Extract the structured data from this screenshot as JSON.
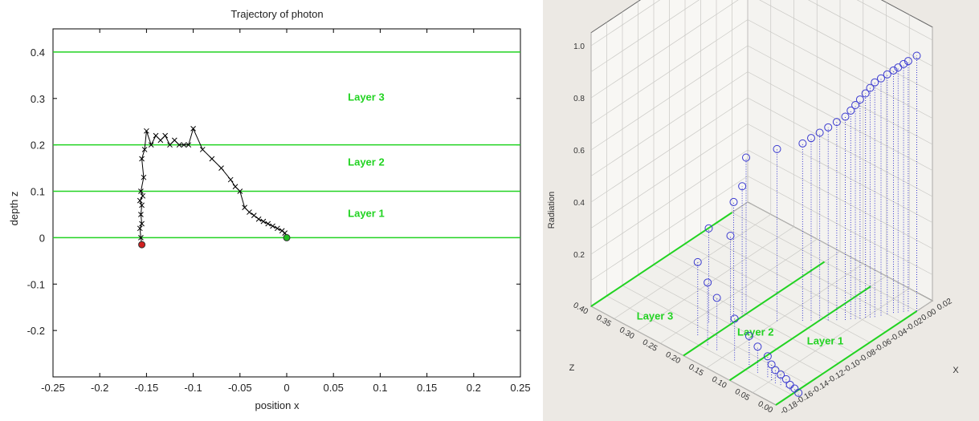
{
  "chart_data": [
    {
      "type": "line",
      "title": "Trajectory of photon",
      "xlabel": "position x",
      "ylabel": "depth z",
      "xlim": [
        -0.25,
        0.25
      ],
      "ylim": [
        -0.3,
        0.45
      ],
      "xticks": [
        "-0.25",
        "-0.2",
        "-0.15",
        "-0.1",
        "-0.05",
        "0",
        "0.05",
        "0.1",
        "0.15",
        "0.2",
        "0.25"
      ],
      "yticks": [
        "-0.2",
        "-0.1",
        "0",
        "0.1",
        "0.2",
        "0.3",
        "0.4"
      ],
      "layer_boundaries": [
        0,
        0.1,
        0.2,
        0.4
      ],
      "layer_labels": [
        {
          "text": "Layer 1",
          "x": 0.085,
          "y": 0.045
        },
        {
          "text": "Layer 2",
          "x": 0.085,
          "y": 0.155
        },
        {
          "text": "Layer 3",
          "x": 0.085,
          "y": 0.295
        }
      ],
      "series": [
        {
          "x": [
            0,
            -0.002,
            -0.005,
            -0.01,
            -0.015,
            -0.02,
            -0.025,
            -0.03,
            -0.035,
            -0.04,
            -0.045,
            -0.05,
            -0.055,
            -0.06,
            -0.07,
            -0.08,
            -0.09,
            -0.1,
            -0.105,
            -0.11,
            -0.115,
            -0.12,
            -0.125,
            -0.13,
            -0.135,
            -0.14,
            -0.145,
            -0.15,
            -0.152,
            -0.155,
            -0.153,
            -0.156,
            -0.154,
            -0.157,
            -0.155,
            -0.156,
            -0.155,
            -0.157,
            -0.156,
            -0.155
          ],
          "y": [
            0,
            0.01,
            0.015,
            0.02,
            0.025,
            0.03,
            0.035,
            0.04,
            0.048,
            0.055,
            0.065,
            0.1,
            0.11,
            0.125,
            0.15,
            0.17,
            0.19,
            0.235,
            0.2,
            0.2,
            0.2,
            0.21,
            0.2,
            0.22,
            0.21,
            0.22,
            0.2,
            0.23,
            0.19,
            0.17,
            0.13,
            0.1,
            0.09,
            0.08,
            0.07,
            0.05,
            0.03,
            0.02,
            0.0,
            -0.015
          ],
          "markers": "x"
        }
      ],
      "start_point": {
        "x": 0,
        "y": 0,
        "color": "#20c020"
      },
      "end_point": {
        "x": -0.155,
        "y": -0.015,
        "color": "#d02020"
      }
    },
    {
      "type": "scatter",
      "title": "",
      "xlabel": "X",
      "ylabel": "Z",
      "zlabel": "Radiation",
      "xticks": [
        "0.02",
        "0.00",
        "-0.02",
        "-0.04",
        "-0.06",
        "-0.08",
        "-0.10",
        "-0.12",
        "-0.14",
        "-0.16",
        "-0.18"
      ],
      "yticks": [
        "0.00",
        "0.05",
        "0.10",
        "0.15",
        "0.20",
        "0.25",
        "0.30",
        "0.35",
        "0.40"
      ],
      "zticks": [
        "0.2",
        "0.4",
        "0.6",
        "0.8",
        "1.0"
      ],
      "layer_labels": [
        "Layer 3",
        "Layer 2",
        "Layer 1"
      ],
      "points": [
        {
          "x": 0.0,
          "z": 0.0,
          "r": 0.98
        },
        {
          "x": -0.005,
          "z": 0.01,
          "r": 0.96
        },
        {
          "x": -0.008,
          "z": 0.015,
          "r": 0.95
        },
        {
          "x": -0.012,
          "z": 0.02,
          "r": 0.94
        },
        {
          "x": -0.015,
          "z": 0.025,
          "r": 0.93
        },
        {
          "x": -0.02,
          "z": 0.03,
          "r": 0.92
        },
        {
          "x": -0.025,
          "z": 0.035,
          "r": 0.91
        },
        {
          "x": -0.03,
          "z": 0.04,
          "r": 0.9
        },
        {
          "x": -0.033,
          "z": 0.045,
          "r": 0.88
        },
        {
          "x": -0.036,
          "z": 0.05,
          "r": 0.86
        },
        {
          "x": -0.04,
          "z": 0.055,
          "r": 0.84
        },
        {
          "x": -0.043,
          "z": 0.06,
          "r": 0.82
        },
        {
          "x": -0.046,
          "z": 0.065,
          "r": 0.8
        },
        {
          "x": -0.05,
          "z": 0.07,
          "r": 0.78
        },
        {
          "x": -0.055,
          "z": 0.08,
          "r": 0.76
        },
        {
          "x": -0.06,
          "z": 0.09,
          "r": 0.74
        },
        {
          "x": -0.065,
          "z": 0.1,
          "r": 0.72
        },
        {
          "x": -0.07,
          "z": 0.11,
          "r": 0.7
        },
        {
          "x": -0.075,
          "z": 0.12,
          "r": 0.68
        },
        {
          "x": -0.09,
          "z": 0.15,
          "r": 0.66
        },
        {
          "x": -0.1,
          "z": 0.2,
          "r": 0.6
        },
        {
          "x": -0.105,
          "z": 0.2,
          "r": 0.5
        },
        {
          "x": -0.11,
          "z": 0.21,
          "r": 0.44
        },
        {
          "x": -0.13,
          "z": 0.23,
          "r": 0.36
        },
        {
          "x": -0.12,
          "z": 0.2,
          "r": 0.34
        },
        {
          "x": -0.15,
          "z": 0.22,
          "r": 0.28
        },
        {
          "x": -0.155,
          "z": 0.19,
          "r": 0.24
        },
        {
          "x": -0.155,
          "z": 0.17,
          "r": 0.2
        },
        {
          "x": -0.156,
          "z": 0.13,
          "r": 0.16
        },
        {
          "x": -0.155,
          "z": 0.1,
          "r": 0.12
        },
        {
          "x": -0.156,
          "z": 0.08,
          "r": 0.1
        },
        {
          "x": -0.155,
          "z": 0.06,
          "r": 0.08
        },
        {
          "x": -0.156,
          "z": 0.05,
          "r": 0.06
        },
        {
          "x": -0.157,
          "z": 0.04,
          "r": 0.05
        },
        {
          "x": -0.156,
          "z": 0.03,
          "r": 0.04
        },
        {
          "x": -0.155,
          "z": 0.02,
          "r": 0.03
        },
        {
          "x": -0.156,
          "z": 0.01,
          "r": 0.02
        },
        {
          "x": -0.156,
          "z": 0.0,
          "r": 0.015
        },
        {
          "x": -0.157,
          "z": -0.01,
          "r": 0.01
        }
      ]
    }
  ]
}
